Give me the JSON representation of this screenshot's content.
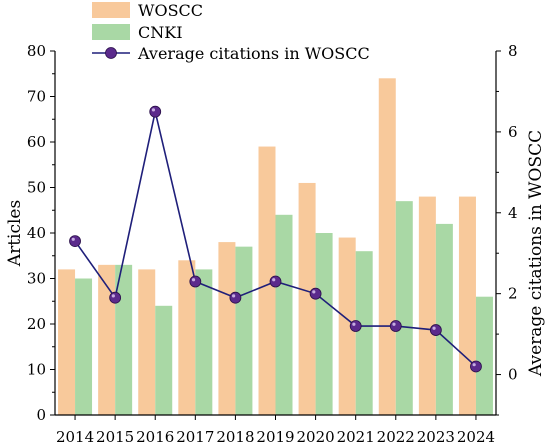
{
  "chart_data": {
    "type": "bar",
    "categories": [
      "2014",
      "2015",
      "2016",
      "2017",
      "2018",
      "2019",
      "2020",
      "2021",
      "2022",
      "2023",
      "2024"
    ],
    "series": [
      {
        "name": "WOSCC",
        "type": "bar",
        "axis": "left",
        "color": "#f8c99b",
        "values": [
          32,
          33,
          32,
          34,
          38,
          59,
          51,
          39,
          74,
          48,
          48
        ]
      },
      {
        "name": "CNKI",
        "type": "bar",
        "axis": "left",
        "color": "#a9d8a5",
        "values": [
          30,
          33,
          24,
          32,
          37,
          44,
          40,
          36,
          47,
          42,
          26
        ]
      },
      {
        "name": "Average citations in WOSCC",
        "type": "line",
        "axis": "right",
        "color": "#1f1f7a",
        "marker_color": "#5b2a8c",
        "values": [
          3.3,
          1.9,
          6.5,
          2.3,
          1.9,
          2.3,
          2.0,
          1.2,
          1.2,
          1.1,
          0.2
        ]
      }
    ],
    "ylabel": "Articles",
    "ylabel_right": "Average citations in WOSCC",
    "ylim": [
      0,
      80
    ],
    "ylim_right": [
      -1,
      8
    ],
    "yticks": [
      "0",
      "10",
      "20",
      "30",
      "40",
      "50",
      "60",
      "70",
      "80"
    ],
    "yticks_right": [
      "0",
      "2",
      "4",
      "6",
      "8"
    ],
    "grid": false,
    "legend_position": "top-left"
  }
}
